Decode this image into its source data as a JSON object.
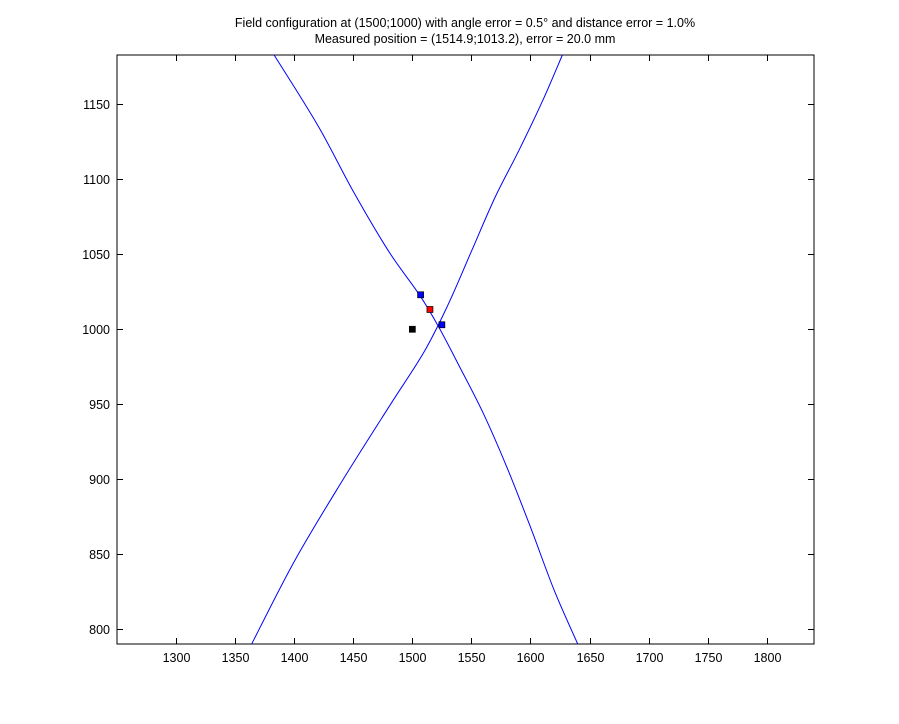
{
  "chart_data": {
    "type": "line",
    "title": "Field configuration at (1500;1000) with angle error = 0.5° and distance error = 1.0%",
    "subtitle": "Measured position = (1514.9;1013.2), error = 20.0 mm",
    "xlabel": "",
    "ylabel": "",
    "xlim": [
      1250,
      1840
    ],
    "ylim": [
      790,
      1183
    ],
    "x_ticks": [
      1300,
      1350,
      1400,
      1450,
      1500,
      1550,
      1600,
      1650,
      1700,
      1750,
      1800
    ],
    "y_ticks": [
      800,
      850,
      900,
      950,
      1000,
      1050,
      1100,
      1150
    ],
    "grid": false,
    "series": [
      {
        "color": "#0000ff",
        "points": [
          [
            1383,
            1183
          ],
          [
            1420,
            1136
          ],
          [
            1450,
            1092
          ],
          [
            1480,
            1052
          ],
          [
            1506,
            1023
          ],
          [
            1522,
            1002
          ],
          [
            1540,
            975
          ],
          [
            1560,
            944
          ],
          [
            1580,
            908
          ],
          [
            1600,
            868
          ],
          [
            1620,
            826
          ],
          [
            1640,
            790
          ]
        ]
      },
      {
        "color": "#0000ff",
        "points": [
          [
            1364,
            790
          ],
          [
            1400,
            845
          ],
          [
            1440,
            898
          ],
          [
            1480,
            948
          ],
          [
            1510,
            985
          ],
          [
            1530,
            1016
          ],
          [
            1550,
            1052
          ],
          [
            1570,
            1088
          ],
          [
            1590,
            1119
          ],
          [
            1610,
            1152
          ],
          [
            1627,
            1183
          ]
        ]
      }
    ],
    "markers": [
      {
        "x": 1500,
        "y": 1000,
        "color": "#000000"
      },
      {
        "x": 1514.9,
        "y": 1013.2,
        "color": "#ff0000"
      },
      {
        "x": 1507,
        "y": 1023,
        "color": "#0000ff"
      },
      {
        "x": 1525,
        "y": 1003,
        "color": "#0000ff"
      }
    ]
  }
}
